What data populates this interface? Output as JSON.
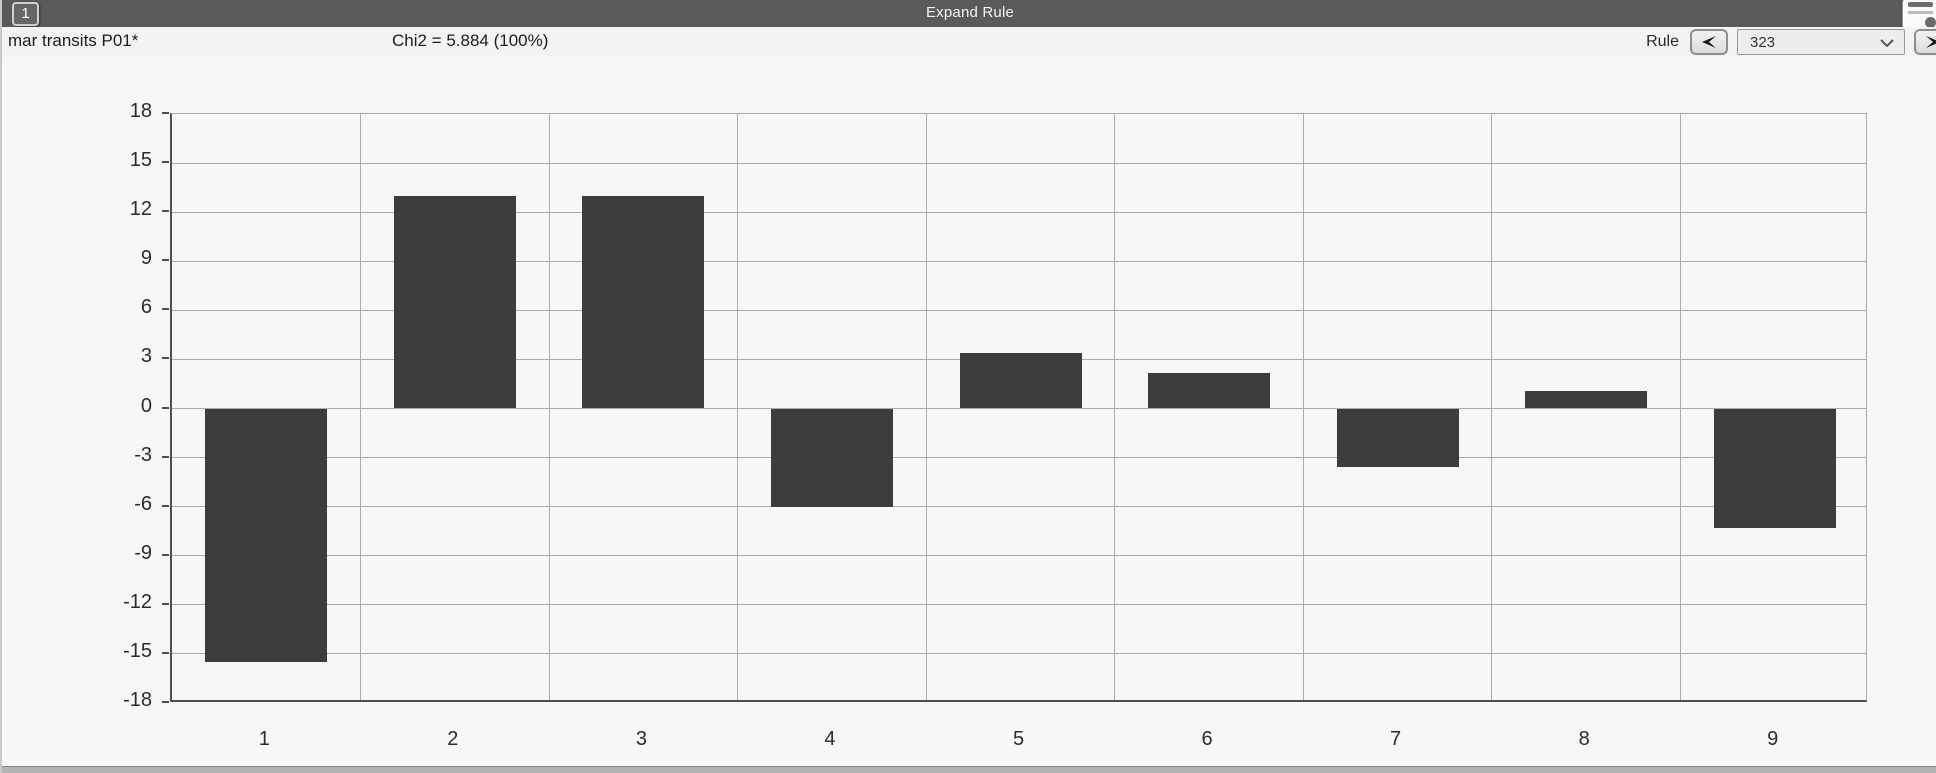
{
  "window": {
    "title": "Expand Rule",
    "page_button_label": "1"
  },
  "header": {
    "left_text": "mar transits P01*",
    "chi2_text": "Chi2 = 5.884 (100%)",
    "rule_label": "Rule",
    "rule_value": "323"
  },
  "chart_data": {
    "type": "bar",
    "categories": [
      "1",
      "2",
      "3",
      "4",
      "5",
      "6",
      "7",
      "8",
      "9"
    ],
    "values": [
      -15.5,
      13,
      13,
      -6,
      3.4,
      2.2,
      -3.6,
      1.1,
      -7.3
    ],
    "title": "",
    "xlabel": "",
    "ylabel": "",
    "ylim": [
      -18,
      18
    ],
    "yticks": [
      18,
      15,
      12,
      9,
      6,
      3,
      0,
      -3,
      -6,
      -9,
      -12,
      -15,
      -18
    ],
    "grid": true,
    "legend": false,
    "bar_color": "#3d3d3d",
    "background": "#f7f7f7"
  }
}
